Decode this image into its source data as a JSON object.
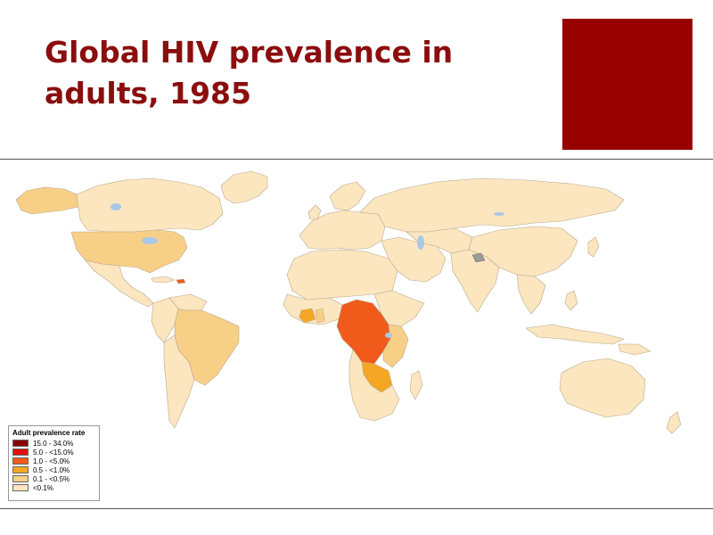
{
  "slide": {
    "title": "Global HIV prevalence in adults, 1985"
  },
  "legend": {
    "title": "Adult prevalence rate",
    "items": [
      {
        "label": "15.0 - 34.0%",
        "color": "#8b0000"
      },
      {
        "label": "5.0 - <15.0%",
        "color": "#e01010"
      },
      {
        "label": "1.0 - <5.0%",
        "color": "#f05a1a"
      },
      {
        "label": "0.5 - <1.0%",
        "color": "#f5a623"
      },
      {
        "label": "0.1 - <0.5%",
        "color": "#f8cf87"
      },
      {
        "label": "<0.1%",
        "color": "#fbe6bf"
      }
    ]
  },
  "colors": {
    "accent": "#990000",
    "title": "#8b0d0d",
    "water": "#a8c8e8",
    "land_default": "#fbe6bf"
  }
}
